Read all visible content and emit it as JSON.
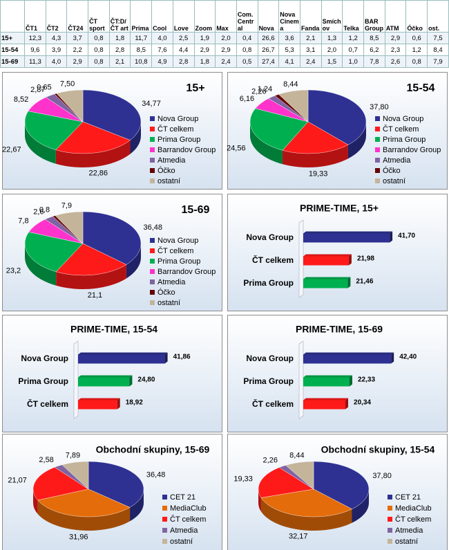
{
  "table": {
    "columns": [
      "ČT1",
      "ČT2",
      "ČT24",
      "ČT sport",
      "ČT:D/ČT art",
      "Prima",
      "Cool",
      "Love",
      "Zoom",
      "Max",
      "Com. Central",
      "Nova",
      "Nova Cinema",
      "Fanda",
      "Smíchov",
      "Telka",
      "BAR Group",
      "ATM",
      "Óčko",
      "ost."
    ],
    "rows": [
      {
        "label": "15+",
        "cells": [
          "12,3",
          "4,3",
          "3,7",
          "0,8",
          "1,8",
          "11,7",
          "4,0",
          "2,5",
          "1,9",
          "2,0",
          "0,4",
          "26,6",
          "3,6",
          "2,1",
          "1,3",
          "1,2",
          "8,5",
          "2,9",
          "0,6",
          "7,5"
        ]
      },
      {
        "label": "15-54",
        "cells": [
          "9,6",
          "3,9",
          "2,2",
          "0,8",
          "2,8",
          "8,5",
          "7,6",
          "4,4",
          "2,9",
          "2,9",
          "0,8",
          "26,7",
          "5,3",
          "3,1",
          "2,0",
          "0,7",
          "6,2",
          "2,3",
          "1,2",
          "8,4"
        ]
      },
      {
        "label": "15-69",
        "cells": [
          "11,3",
          "4,0",
          "2,9",
          "0,8",
          "2,1",
          "10,8",
          "4,9",
          "2,8",
          "1,8",
          "2,4",
          "0,5",
          "27,4",
          "4,1",
          "2,4",
          "1,5",
          "1,0",
          "7,8",
          "2,6",
          "0,8",
          "7,9"
        ]
      }
    ]
  },
  "chart_data": [
    {
      "type": "pie",
      "title": "15+",
      "categories": [
        "Nova Group",
        "ČT celkem",
        "Prima Group",
        "Barrandov Group",
        "Atmedia",
        "Óčko",
        "ostatní"
      ],
      "values": [
        34.77,
        22.86,
        22.67,
        8.52,
        2.87,
        0.65,
        7.5
      ],
      "value_labels": [
        "34,77",
        "22,86",
        "22,67",
        "8,52",
        "2,87",
        "0,65",
        "7,50"
      ],
      "colors": [
        "#2e3192",
        "#ff1a1a",
        "#00b050",
        "#ff33cc",
        "#8064a2",
        "#660000",
        "#c4b49a"
      ]
    },
    {
      "type": "pie",
      "title": "15-54",
      "categories": [
        "Nova Group",
        "ČT celkem",
        "Prima Group",
        "Barrandov Group",
        "Atmedia",
        "Óčko",
        "ostatní"
      ],
      "values": [
        37.8,
        19.33,
        24.56,
        6.16,
        2.26,
        1.24,
        8.44
      ],
      "value_labels": [
        "37,80",
        "19,33",
        "24,56",
        "6,16",
        "2,26",
        "1,24",
        "8,44"
      ],
      "colors": [
        "#2e3192",
        "#ff1a1a",
        "#00b050",
        "#ff33cc",
        "#8064a2",
        "#660000",
        "#c4b49a"
      ]
    },
    {
      "type": "pie",
      "title": "15-69",
      "categories": [
        "Nova Group",
        "ČT celkem",
        "Prima Group",
        "Barrandov Group",
        "Atmedia",
        "Óčko",
        "ostatní"
      ],
      "values": [
        36.48,
        21.1,
        23.2,
        7.8,
        2.6,
        0.8,
        7.9
      ],
      "value_labels": [
        "36,48",
        "21,1",
        "23,2",
        "7,8",
        "2,6",
        "0,8",
        "7,9"
      ],
      "colors": [
        "#2e3192",
        "#ff1a1a",
        "#00b050",
        "#ff33cc",
        "#8064a2",
        "#660000",
        "#c4b49a"
      ]
    },
    {
      "type": "bar",
      "title": "PRIME-TIME, 15+",
      "categories": [
        "Nova Group",
        "ČT celkem",
        "Prima Group"
      ],
      "values": [
        41.7,
        21.98,
        21.46
      ],
      "value_labels": [
        "41,70",
        "21,98",
        "21,46"
      ],
      "colors": [
        "#2e3192",
        "#ff1a1a",
        "#00b050"
      ]
    },
    {
      "type": "bar",
      "title": "PRIME-TIME, 15-54",
      "categories": [
        "Nova Group",
        "Prima Group",
        "ČT celkem"
      ],
      "values": [
        41.86,
        24.8,
        18.92
      ],
      "value_labels": [
        "41,86",
        "24,80",
        "18,92"
      ],
      "colors": [
        "#2e3192",
        "#00b050",
        "#ff1a1a"
      ]
    },
    {
      "type": "bar",
      "title": "PRIME-TIME, 15-69",
      "categories": [
        "Nova Group",
        "Prima Group",
        "ČT celkem"
      ],
      "values": [
        42.4,
        22.33,
        20.34
      ],
      "value_labels": [
        "42,40",
        "22,33",
        "20,34"
      ],
      "colors": [
        "#2e3192",
        "#00b050",
        "#ff1a1a"
      ]
    },
    {
      "type": "pie",
      "title": "Obchodní skupiny, 15-69",
      "categories": [
        "CET 21",
        "MediaClub",
        "ČT celkem",
        "Atmedia",
        "ostatní"
      ],
      "values": [
        36.48,
        31.96,
        21.07,
        2.58,
        7.89
      ],
      "value_labels": [
        "36,48",
        "31,96",
        "21,07",
        "2,58",
        "7,89"
      ],
      "colors": [
        "#2e3192",
        "#e46c0a",
        "#ff1a1a",
        "#8064a2",
        "#c4b49a"
      ]
    },
    {
      "type": "pie",
      "title": "Obchodní skupiny, 15-54",
      "categories": [
        "CET 21",
        "MediaClub",
        "ČT celkem",
        "Atmedia",
        "ostatní"
      ],
      "values": [
        37.8,
        32.17,
        19.33,
        2.26,
        8.44
      ],
      "value_labels": [
        "37,80",
        "32,17",
        "19,33",
        "2,26",
        "8,44"
      ],
      "colors": [
        "#2e3192",
        "#e46c0a",
        "#ff1a1a",
        "#8064a2",
        "#c4b49a"
      ]
    }
  ]
}
